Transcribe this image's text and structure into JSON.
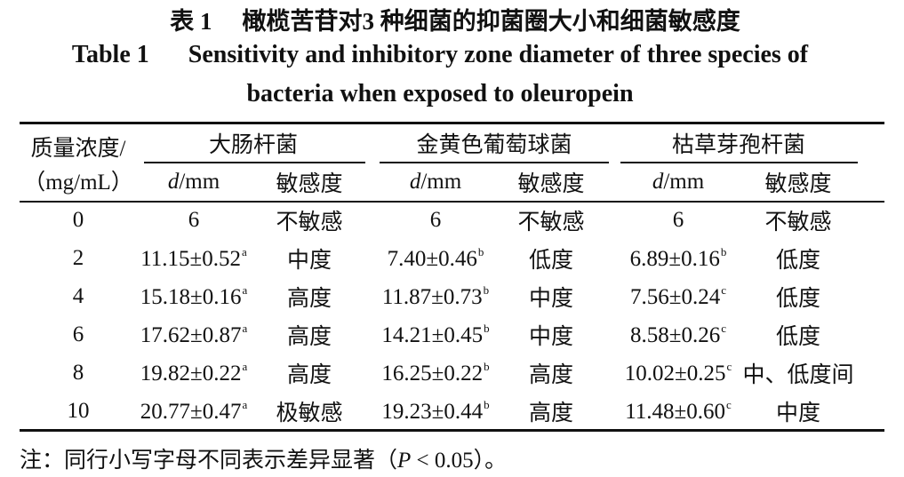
{
  "title_cn": {
    "label": "表 1",
    "text": "橄榄苦苷对3 种细菌的抑菌圈大小和细菌敏感度"
  },
  "title_en": {
    "label": "Table 1",
    "lines": [
      "Sensitivity and inhibitory zone diameter of three species of",
      "bacteria when exposed to oleuropein"
    ]
  },
  "table": {
    "corner": [
      "质量浓度/",
      "（mg/mL）"
    ],
    "groups": [
      "大肠杆菌",
      "金黄色葡萄球菌",
      "枯草芽孢杆菌"
    ],
    "subheader": {
      "symbol": "d",
      "unit": "/mm",
      "sensitivity": "敏感度"
    },
    "rows": [
      {
        "concentration": 0,
        "cells": [
          {
            "d": 6,
            "sensitivity": "不敏感"
          },
          {
            "d": 6,
            "sensitivity": "不敏感"
          },
          {
            "d": 6,
            "sensitivity": "不敏感"
          }
        ]
      },
      {
        "concentration": 2,
        "cells": [
          {
            "d": "11.15±0.52",
            "sig": "a",
            "sensitivity": "中度"
          },
          {
            "d": "7.40±0.46",
            "sig": "b",
            "sensitivity": "低度"
          },
          {
            "d": "6.89±0.16",
            "sig": "b",
            "sensitivity": "低度"
          }
        ]
      },
      {
        "concentration": 4,
        "cells": [
          {
            "d": "15.18±0.16",
            "sig": "a",
            "sensitivity": "高度"
          },
          {
            "d": "11.87±0.73",
            "sig": "b",
            "sensitivity": "中度"
          },
          {
            "d": "7.56±0.24",
            "sig": "c",
            "sensitivity": "低度"
          }
        ]
      },
      {
        "concentration": 6,
        "cells": [
          {
            "d": "17.62±0.87",
            "sig": "a",
            "sensitivity": "高度"
          },
          {
            "d": "14.21±0.45",
            "sig": "b",
            "sensitivity": "中度"
          },
          {
            "d": "8.58±0.26",
            "sig": "c",
            "sensitivity": "低度"
          }
        ]
      },
      {
        "concentration": 8,
        "cells": [
          {
            "d": "19.82±0.22",
            "sig": "a",
            "sensitivity": "高度"
          },
          {
            "d": "16.25±0.22",
            "sig": "b",
            "sensitivity": "高度"
          },
          {
            "d": "10.02±0.25",
            "sig": "c",
            "sensitivity": "中、低度间"
          }
        ]
      },
      {
        "concentration": 10,
        "cells": [
          {
            "d": "20.77±0.47",
            "sig": "a",
            "sensitivity": "极敏感"
          },
          {
            "d": "19.23±0.44",
            "sig": "b",
            "sensitivity": "高度"
          },
          {
            "d": "11.48±0.60",
            "sig": "c",
            "sensitivity": "中度"
          }
        ]
      }
    ]
  },
  "note": {
    "prefix": "注：同行小写字母不同表示差异显著（",
    "symbol": "P",
    "suffix": " < 0.05）。"
  }
}
